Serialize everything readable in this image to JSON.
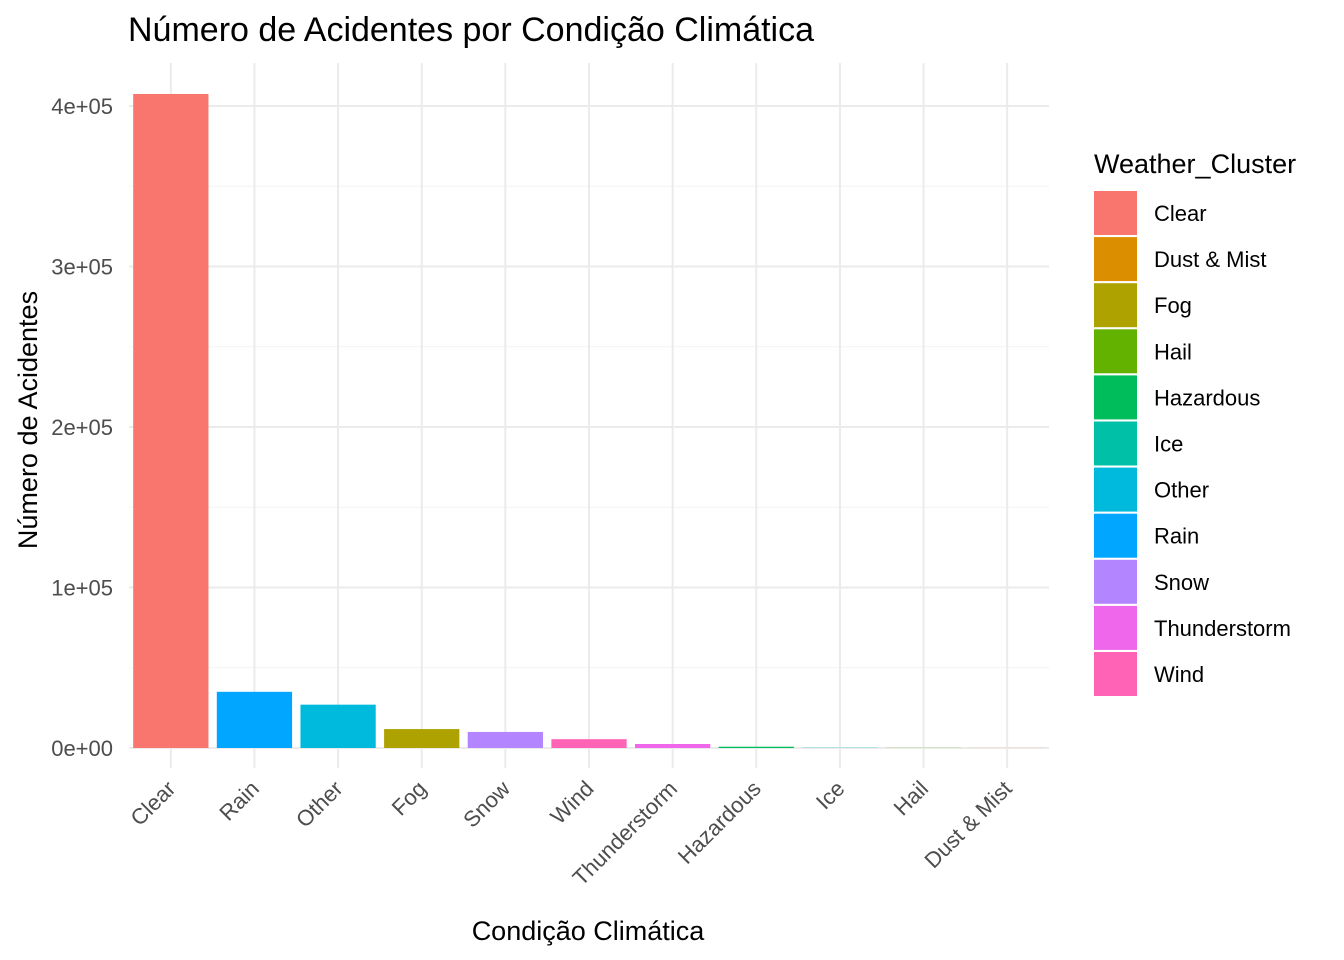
{
  "chart_data": {
    "type": "bar",
    "title": "Número de Acidentes por Condição Climática",
    "xlabel": "Condição Climática",
    "ylabel": "Número de Acidentes",
    "categories": [
      "Clear",
      "Rain",
      "Other",
      "Fog",
      "Snow",
      "Wind",
      "Thunderstorm",
      "Hazardous",
      "Ice",
      "Hail",
      "Dust & Mist"
    ],
    "values": [
      407500,
      35000,
      27000,
      11800,
      10000,
      5500,
      2500,
      800,
      150,
      100,
      50
    ],
    "ylim": [
      0,
      425000
    ],
    "yticks": [
      0,
      100000,
      200000,
      300000,
      400000
    ],
    "ytick_labels": [
      "0e+00",
      "1e+05",
      "2e+05",
      "3e+05",
      "4e+05"
    ],
    "grid": true,
    "legend": {
      "title": "Weather_Cluster",
      "placement": "right",
      "items": [
        {
          "label": "Clear",
          "color": "#F8766D"
        },
        {
          "label": "Dust & Mist",
          "color": "#DB8E00"
        },
        {
          "label": "Fog",
          "color": "#AEA200"
        },
        {
          "label": "Hail",
          "color": "#64B200"
        },
        {
          "label": "Hazardous",
          "color": "#00BD5C"
        },
        {
          "label": "Ice",
          "color": "#00C1A7"
        },
        {
          "label": "Other",
          "color": "#00BADE"
        },
        {
          "label": "Rain",
          "color": "#00A6FF"
        },
        {
          "label": "Snow",
          "color": "#B385FF"
        },
        {
          "label": "Thunderstorm",
          "color": "#EF67EB"
        },
        {
          "label": "Wind",
          "color": "#FF63B6"
        }
      ]
    }
  }
}
